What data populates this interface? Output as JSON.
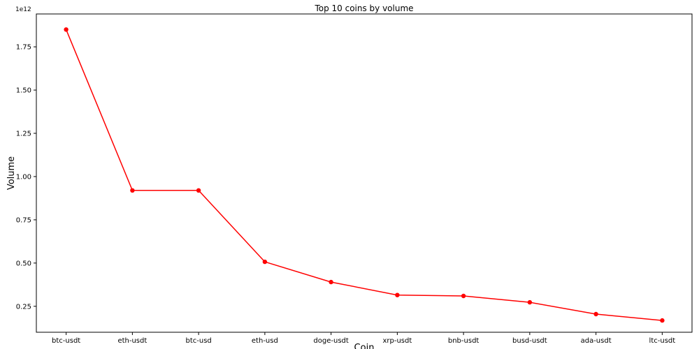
{
  "chart_data": {
    "type": "line",
    "title": "Top 10 coins by volume",
    "xlabel": "Coin",
    "ylabel": "Volume",
    "y_offset_label": "1e12",
    "y_scale": 1000000000000.0,
    "categories": [
      "btc-usdt",
      "eth-usdt",
      "btc-usd",
      "eth-usd",
      "doge-usdt",
      "xrp-usdt",
      "bnb-usdt",
      "busd-usdt",
      "ada-usdt",
      "ltc-usdt"
    ],
    "series": [
      {
        "values": [
          1850000000000.0,
          920000000000.0,
          920000000000.0,
          507000000000.0,
          390000000000.0,
          315000000000.0,
          310000000000.0,
          273000000000.0,
          205000000000.0,
          168000000000.0
        ],
        "color": "#ff0000",
        "marker": "circle"
      }
    ],
    "yticks": [
      {
        "value": 0.25,
        "label": "0.25"
      },
      {
        "value": 0.5,
        "label": "0.50"
      },
      {
        "value": 0.75,
        "label": "0.75"
      },
      {
        "value": 1.0,
        "label": "1.00"
      },
      {
        "value": 1.25,
        "label": "1.25"
      },
      {
        "value": 1.5,
        "label": "1.50"
      },
      {
        "value": 1.75,
        "label": "1.75"
      }
    ],
    "ylim": [
      0.1,
      1.94
    ],
    "grid": false,
    "legend": "none"
  }
}
